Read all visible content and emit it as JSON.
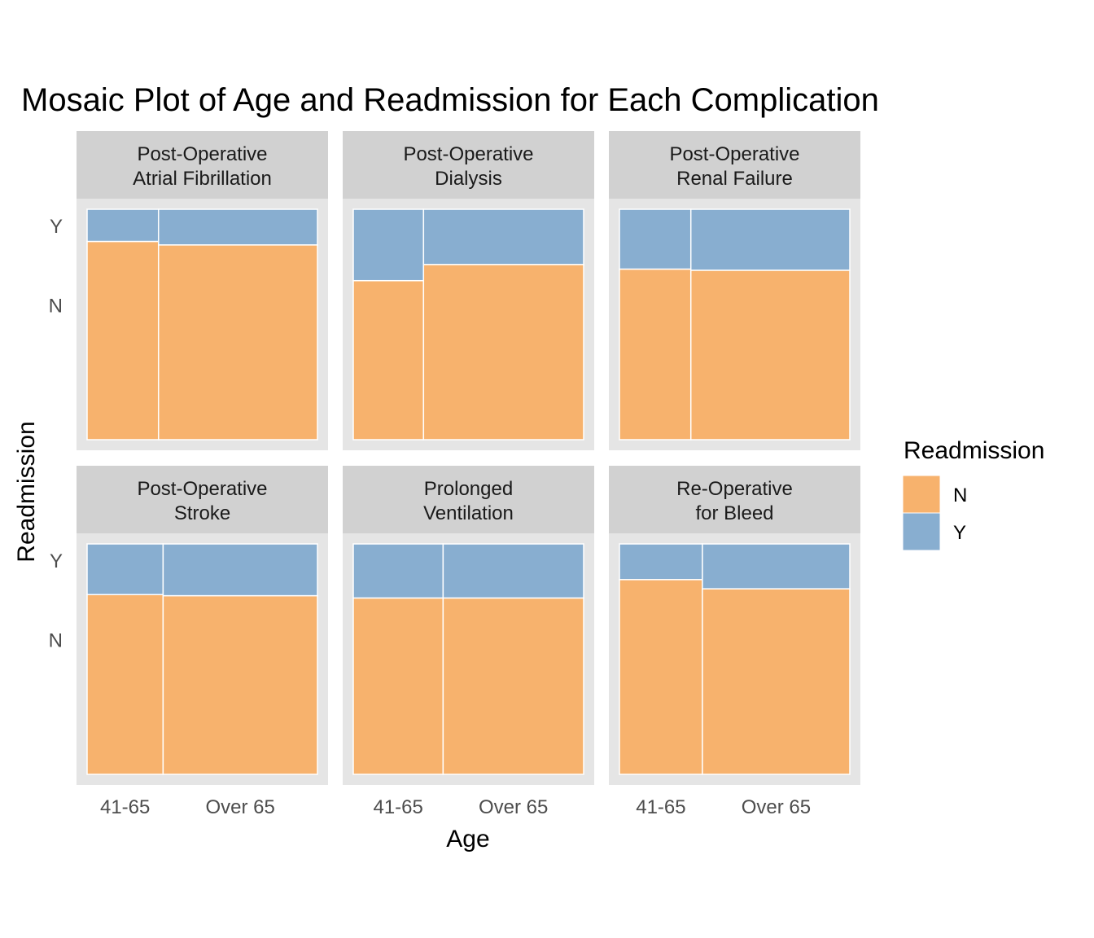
{
  "chart_data": {
    "type": "mosaic",
    "title": "Mosaic Plot of Age and Readmission for Each Complication",
    "xlabel": "Age",
    "ylabel": "Readmission",
    "x_categories": [
      "41-65",
      "Over 65"
    ],
    "y_categories": [
      "N",
      "Y"
    ],
    "legend": {
      "title": "Readmission",
      "position": "right",
      "entries": [
        {
          "label": "N",
          "color": "#F7B26D"
        },
        {
          "label": "Y",
          "color": "#88AED0"
        }
      ]
    },
    "panels": [
      {
        "strip": [
          "Post-Operative",
          "Atrial Fibrillation"
        ],
        "age_share_41_65": 0.31,
        "readmit_Y_share": [
          0.14,
          0.155
        ]
      },
      {
        "strip": [
          "Post-Operative",
          "Dialysis"
        ],
        "age_share_41_65": 0.305,
        "readmit_Y_share": [
          0.31,
          0.24
        ]
      },
      {
        "strip": [
          "Post-Operative",
          "Renal Failure"
        ],
        "age_share_41_65": 0.31,
        "readmit_Y_share": [
          0.26,
          0.265
        ]
      },
      {
        "strip": [
          "Post-Operative",
          "Stroke"
        ],
        "age_share_41_65": 0.33,
        "readmit_Y_share": [
          0.22,
          0.225
        ]
      },
      {
        "strip": [
          "Prolonged",
          "Ventilation"
        ],
        "age_share_41_65": 0.39,
        "readmit_Y_share": [
          0.235,
          0.235
        ]
      },
      {
        "strip": [
          "Re-Operative",
          "for Bleed"
        ],
        "age_share_41_65": 0.36,
        "readmit_Y_share": [
          0.155,
          0.195
        ]
      }
    ],
    "colors": {
      "panel_background": "#E5E5E5",
      "strip_background": "#D1D1D1",
      "tile_border": "#FFFFFF"
    }
  }
}
